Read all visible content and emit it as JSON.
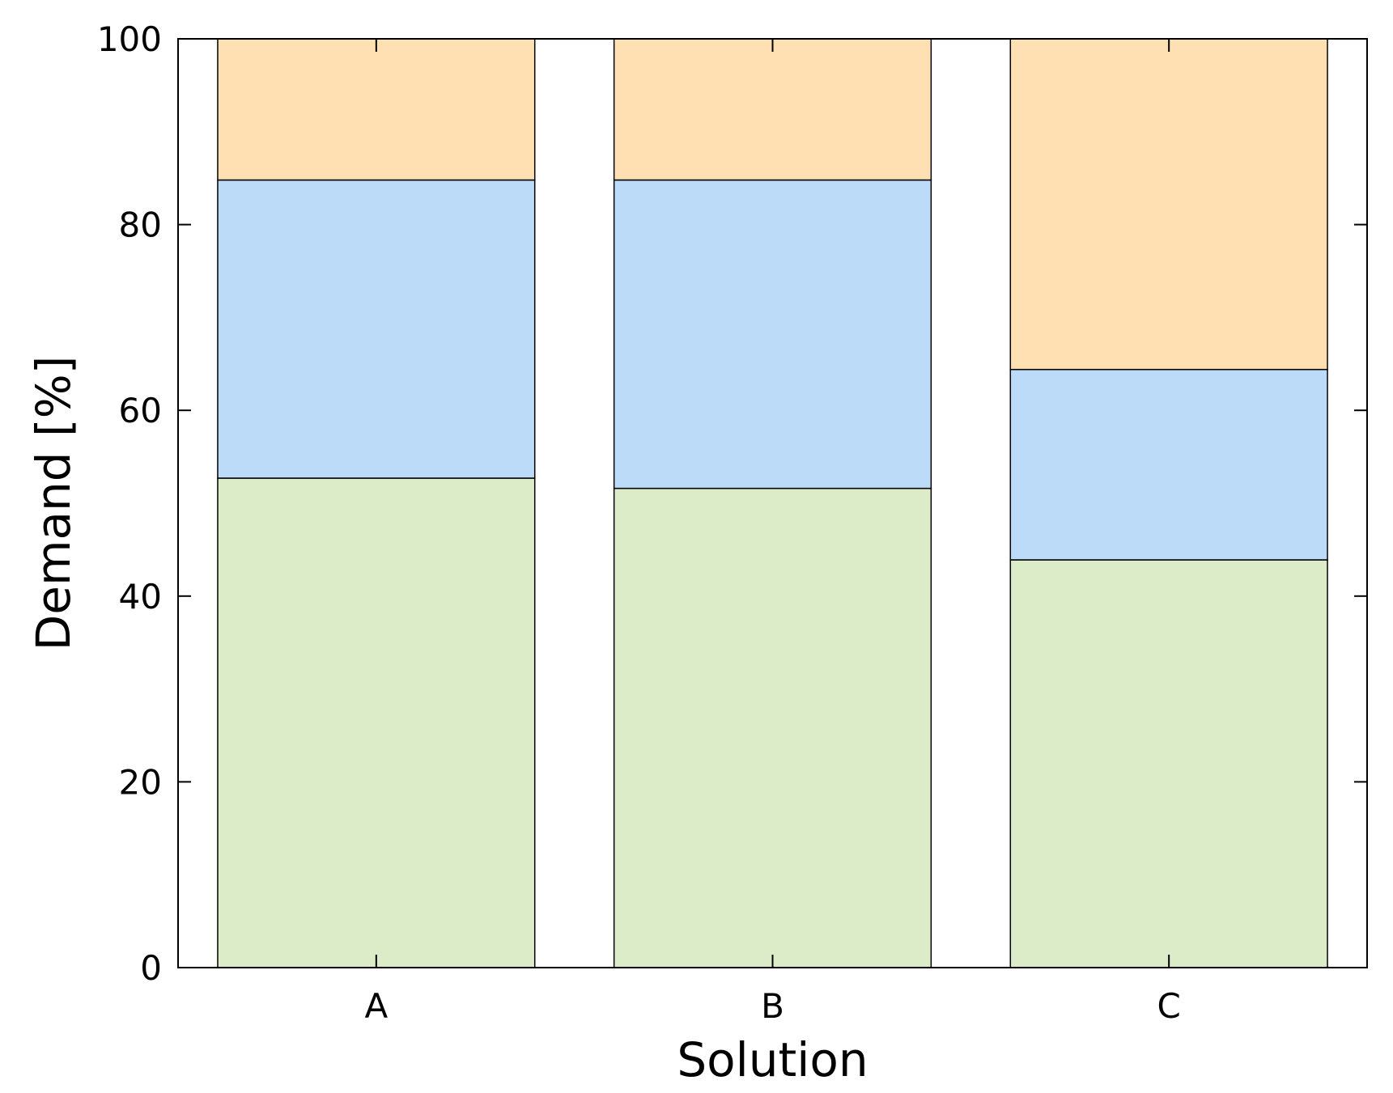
{
  "chart_data": {
    "type": "bar",
    "stacked": true,
    "title": "",
    "xlabel": "Solution",
    "ylabel": "Demand [%]",
    "categories": [
      "A",
      "B",
      "C"
    ],
    "series": [
      {
        "values": [
          52.7,
          51.6,
          43.9
        ],
        "color": "#dcebc8"
      },
      {
        "values": [
          32.1,
          33.2,
          20.5
        ],
        "color": "#bbdbf9"
      },
      {
        "values": [
          15.2,
          15.2,
          35.6
        ],
        "color": "#fee0b2"
      }
    ],
    "ylim": [
      0,
      100
    ],
    "yticks": [
      "0",
      "20",
      "40",
      "60",
      "80",
      "100"
    ],
    "grid": false,
    "legend": "none"
  }
}
